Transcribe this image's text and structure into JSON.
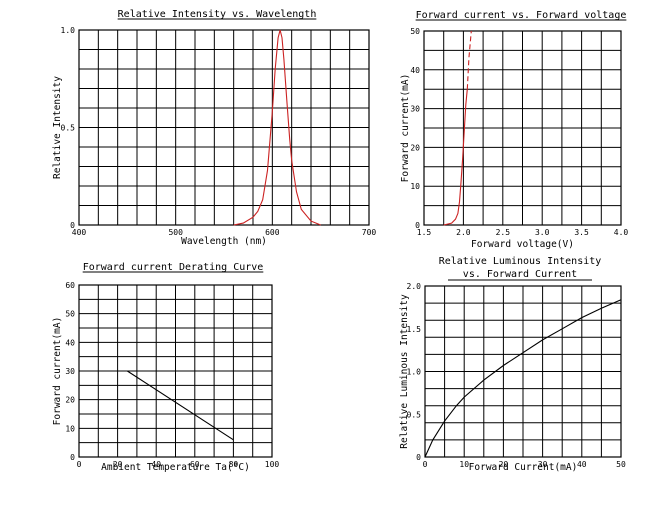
{
  "chart_data": [
    {
      "id": "intensity",
      "type": "line",
      "title": "Relative Intensity vs. Wavelength",
      "xlabel": "Wavelength (nm)",
      "ylabel": "Relative Intensity",
      "xlim": [
        400,
        700
      ],
      "ylim": [
        0,
        1.0
      ],
      "xticks": [
        400,
        500,
        600,
        700
      ],
      "yticks": [
        0,
        0.5,
        1.0
      ],
      "xtick_labels": [
        "400",
        "500",
        "600",
        "700"
      ],
      "ytick_labels": [
        "0",
        "0.5",
        "1.0"
      ],
      "grid": true,
      "grid_cols": 15,
      "grid_rows": 10,
      "series": [
        {
          "color": "#cc2222",
          "style": "solid",
          "x": [
            560,
            570,
            580,
            585,
            590,
            595,
            600,
            603,
            606,
            608,
            610,
            612,
            615,
            618,
            620,
            625,
            630,
            640,
            650
          ],
          "y": [
            0.0,
            0.01,
            0.04,
            0.07,
            0.13,
            0.28,
            0.58,
            0.8,
            0.96,
            1.0,
            0.96,
            0.85,
            0.64,
            0.44,
            0.33,
            0.17,
            0.08,
            0.02,
            0.0
          ]
        }
      ]
    },
    {
      "id": "ivcurve",
      "type": "line",
      "title": "Forward current vs. Forward voltage",
      "xlabel": "Forward voltage(V)",
      "ylabel": "Forward current(mA)",
      "xlim": [
        1.5,
        4.0
      ],
      "ylim": [
        0,
        50
      ],
      "xticks": [
        1.5,
        2.0,
        2.5,
        3.0,
        3.5,
        4.0
      ],
      "yticks": [
        0,
        10,
        20,
        30,
        40,
        50
      ],
      "xtick_labels": [
        "1.5",
        "2.0",
        "2.5",
        "3.0",
        "3.5",
        "4.0"
      ],
      "ytick_labels": [
        "0",
        "10",
        "20",
        "30",
        "40",
        "50"
      ],
      "grid": true,
      "grid_cols": 10,
      "grid_rows": 10,
      "series": [
        {
          "color": "#cc2222",
          "style": "solid",
          "x": [
            1.75,
            1.85,
            1.9,
            1.93,
            1.95,
            1.97,
            1.99,
            2.01,
            2.03,
            2.05
          ],
          "y": [
            0,
            0.5,
            1.5,
            3,
            6,
            11,
            17,
            24,
            31,
            35
          ]
        },
        {
          "color": "#cc2222",
          "style": "dashed",
          "x": [
            2.05,
            2.07,
            2.1
          ],
          "y": [
            35,
            43,
            50
          ]
        }
      ]
    },
    {
      "id": "derating",
      "type": "line",
      "title": "Forward current Derating Curve",
      "xlabel": "Ambient Temperature Ta(°C)",
      "ylabel": "Forward current(mA)",
      "xlim": [
        0,
        100
      ],
      "ylim": [
        0,
        60
      ],
      "xticks": [
        0,
        20,
        40,
        60,
        80,
        100
      ],
      "yticks": [
        0,
        10,
        20,
        30,
        40,
        50,
        60
      ],
      "xtick_labels": [
        "0",
        "20",
        "40",
        "60",
        "80",
        "100"
      ],
      "ytick_labels": [
        "0",
        "10",
        "20",
        "30",
        "40",
        "50",
        "60"
      ],
      "grid": true,
      "grid_cols": 10,
      "grid_rows": 12,
      "series": [
        {
          "color": "#000000",
          "style": "solid",
          "x": [
            25,
            80
          ],
          "y": [
            30,
            6
          ]
        }
      ]
    },
    {
      "id": "luminous",
      "type": "line",
      "title": "Relative Luminous Intensity",
      "title2": "vs. Forward Current",
      "xlabel": "Forward Current(mA)",
      "ylabel": "Relative Luminous Intensity",
      "xlim": [
        0,
        50
      ],
      "ylim": [
        0,
        2.0
      ],
      "xticks": [
        0,
        10,
        20,
        30,
        40,
        50
      ],
      "yticks": [
        0,
        0.5,
        1.0,
        1.5,
        2.0
      ],
      "xtick_labels": [
        "0",
        "10",
        "20",
        "30",
        "40",
        "50"
      ],
      "ytick_labels": [
        "0",
        "0.5",
        "1.0",
        "1.5",
        "2.0"
      ],
      "grid": true,
      "grid_cols": 10,
      "grid_rows": 10,
      "series": [
        {
          "color": "#000000",
          "style": "solid",
          "x": [
            0,
            2,
            5,
            8,
            10,
            15,
            20,
            25,
            30,
            35,
            40,
            45,
            50
          ],
          "y": [
            0,
            0.2,
            0.42,
            0.6,
            0.7,
            0.9,
            1.07,
            1.22,
            1.37,
            1.5,
            1.63,
            1.74,
            1.84
          ]
        }
      ]
    }
  ]
}
